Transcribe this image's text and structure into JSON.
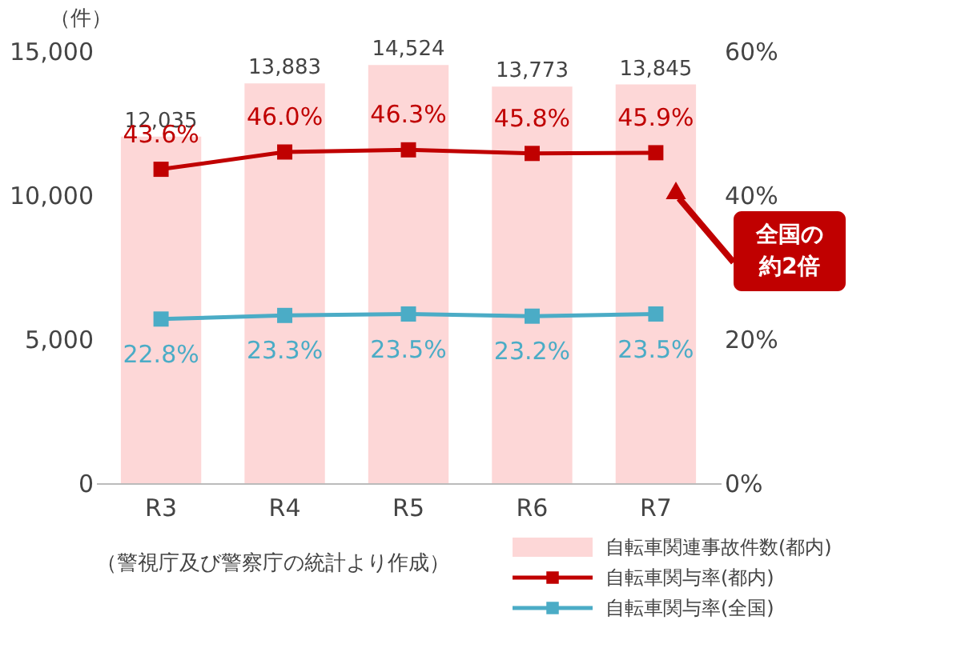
{
  "chart_data": {
    "type": "bar",
    "ylabel": "（件）",
    "categories": [
      "R3",
      "R4",
      "R5",
      "R6",
      "R7"
    ],
    "series": [
      {
        "name": "自転車関連事故件数(都内)",
        "color": "#fdd7d7",
        "values": [
          12035,
          13883,
          14524,
          13773,
          13845
        ],
        "value_labels": [
          "12,035",
          "13,883",
          "14,524",
          "13,773",
          "13,845"
        ]
      },
      {
        "name": "自転車関与率(都内)",
        "type": "line",
        "axis": "y2",
        "color": "#c00000",
        "values": [
          43.6,
          46.0,
          46.3,
          45.8,
          45.9
        ],
        "value_labels": [
          "43.6%",
          "46.0%",
          "46.3%",
          "45.8%",
          "45.9%"
        ]
      },
      {
        "name": "自転車関与率(全国)",
        "type": "line",
        "axis": "y2",
        "color": "#4bacc6",
        "values": [
          22.8,
          23.3,
          23.5,
          23.2,
          23.5
        ],
        "value_labels": [
          "22.8%",
          "23.3%",
          "23.5%",
          "23.2%",
          "23.5%"
        ]
      }
    ],
    "ylim": [
      0,
      15000
    ],
    "yticks": [
      {
        "value": 0,
        "label": "0"
      },
      {
        "value": 5000,
        "label": "5,000"
      },
      {
        "value": 10000,
        "label": "10,000"
      },
      {
        "value": 15000,
        "label": "15,000"
      }
    ],
    "y2lim": [
      0,
      60
    ],
    "y2ticks": [
      {
        "value": 0,
        "label": "0%"
      },
      {
        "value": 20,
        "label": "20%"
      },
      {
        "value": 40,
        "label": "40%"
      },
      {
        "value": 60,
        "label": "60%"
      }
    ],
    "marker": "square",
    "legend": "bottom right",
    "grid": false,
    "annotations": [
      "（警視庁及び警察庁の統計より作成）",
      "全国の",
      "約2倍"
    ]
  }
}
